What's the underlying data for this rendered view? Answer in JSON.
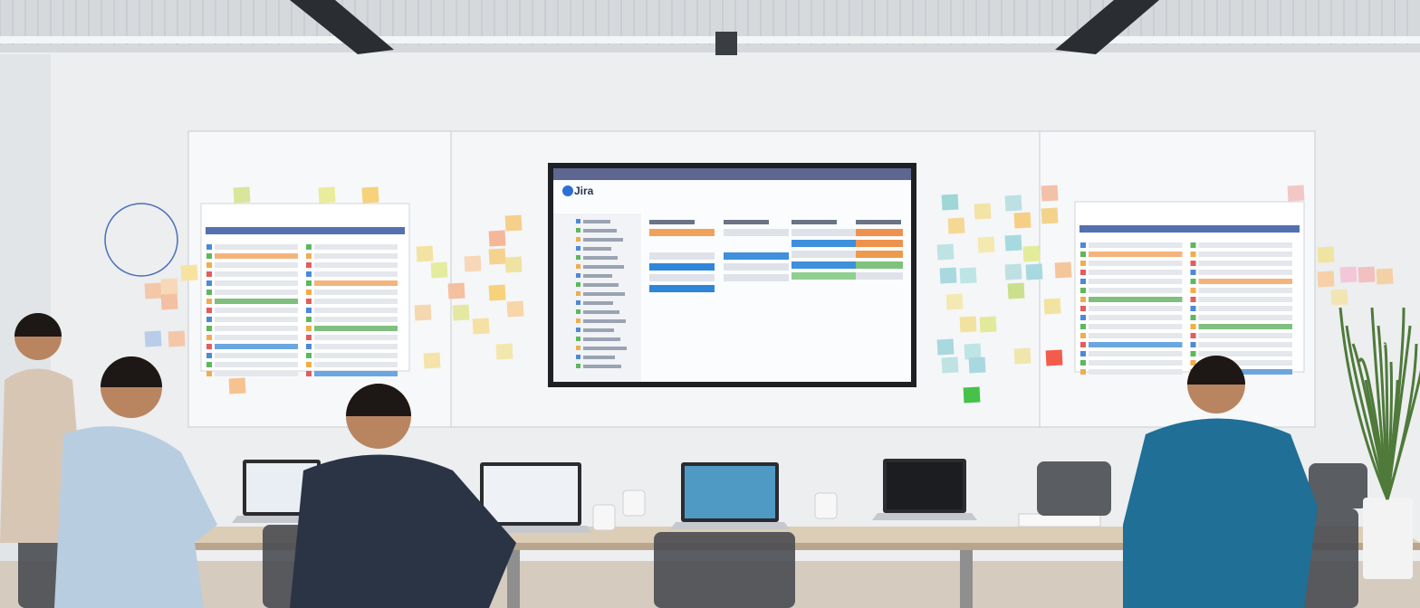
{
  "screen": {
    "app_name": "Jira"
  }
}
